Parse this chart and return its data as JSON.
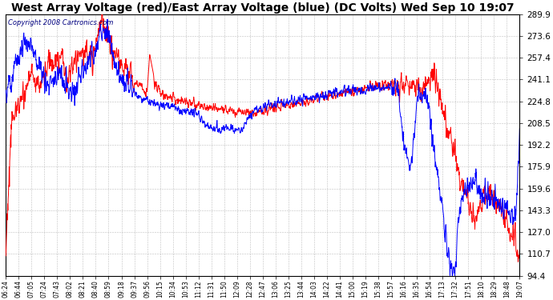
{
  "title": "West Array Voltage (red)/East Array Voltage (blue) (DC Volts) Wed Sep 10 19:07",
  "copyright": "Copyright 2008 Cartronics.com",
  "y_ticks": [
    94.4,
    110.7,
    127.0,
    143.3,
    159.6,
    175.9,
    192.2,
    208.5,
    224.8,
    241.1,
    257.4,
    273.6,
    289.9
  ],
  "ylim": [
    94.4,
    289.9
  ],
  "x_labels": [
    "06:24",
    "06:44",
    "07:05",
    "07:24",
    "07:43",
    "08:02",
    "08:21",
    "08:40",
    "08:59",
    "09:18",
    "09:37",
    "09:56",
    "10:15",
    "10:34",
    "10:53",
    "11:12",
    "11:31",
    "11:50",
    "12:09",
    "12:28",
    "12:47",
    "13:06",
    "13:25",
    "13:44",
    "14:03",
    "14:22",
    "14:41",
    "15:00",
    "15:19",
    "15:38",
    "15:57",
    "16:16",
    "16:35",
    "16:54",
    "17:13",
    "17:32",
    "17:51",
    "18:10",
    "18:29",
    "18:48",
    "19:07"
  ],
  "background_color": "#ffffff",
  "plot_bg_color": "#ffffff",
  "grid_color": "#b0b0b0",
  "title_fontsize": 11,
  "red_color": "#ff0000",
  "blue_color": "#0000ff",
  "copyright_color": "#000080",
  "line_width": 1.0
}
